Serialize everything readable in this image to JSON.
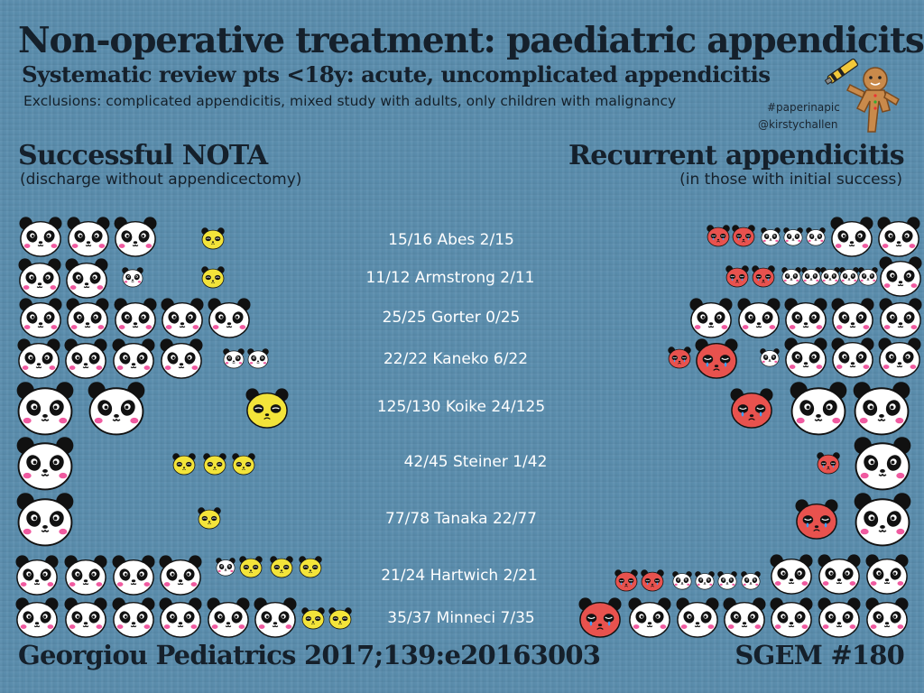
{
  "header": {
    "title": "Non-operative treatment: paediatric appendicits",
    "subtitle": "Systematic review pts <18y: acute, uncomplicated appendicitis",
    "exclusions": "Exclusions: complicated appendicitis, mixed study with adults, only children with malignancy",
    "hashtag": "#paperinapic",
    "handle": "@kirstychallen"
  },
  "left_panel": {
    "heading": "Successful NOTA",
    "subheading": "(discharge without appendicectomy)"
  },
  "right_panel": {
    "heading": "Recurrent appendicitis",
    "subheading": "(in those with initial success)"
  },
  "studies": [
    {
      "label": "15/16 Abes 2/15",
      "nota_success": 15,
      "total": 16,
      "recurrence": 2,
      "success_base": 15
    },
    {
      "label": "11/12 Armstrong 2/11",
      "nota_success": 11,
      "total": 12,
      "recurrence": 2,
      "success_base": 11
    },
    {
      "label": "25/25 Gorter 0/25",
      "nota_success": 25,
      "total": 25,
      "recurrence": 0,
      "success_base": 25
    },
    {
      "label": "22/22 Kaneko 6/22",
      "nota_success": 22,
      "total": 22,
      "recurrence": 6,
      "success_base": 22
    },
    {
      "label": "125/130 Koike 24/125",
      "nota_success": 125,
      "total": 130,
      "recurrence": 24,
      "success_base": 125
    },
    {
      "label": "42/45 Steiner 1/42",
      "nota_success": 42,
      "total": 45,
      "recurrence": 1,
      "success_base": 42
    },
    {
      "label": "77/78 Tanaka 22/77",
      "nota_success": 77,
      "total": 78,
      "recurrence": 22,
      "success_base": 77
    },
    {
      "label": "21/24 Hartwich 2/21",
      "nota_success": 21,
      "total": 24,
      "recurrence": 2,
      "success_base": 21
    },
    {
      "label": "35/37 Minneci 7/35",
      "nota_success": 35,
      "total": 37,
      "recurrence": 7,
      "success_base": 35
    }
  ],
  "footer": {
    "citation": "Georgiou Pediatrics 2017;139:e20163003",
    "episode": "SGEM #180"
  },
  "icons": {
    "panda_success": "panda-white-icon",
    "panda_failure": "panda-yellow-icon",
    "panda_recurrence": "panda-red-icon",
    "mascot": "gingerbread-icon"
  },
  "colors": {
    "background": "#5a8dad",
    "panda_white": "#ffffff",
    "panda_yellow": "#f3e43a",
    "panda_red": "#e8524e",
    "text_dark": "#15202b",
    "text_light": "#ffffff"
  }
}
